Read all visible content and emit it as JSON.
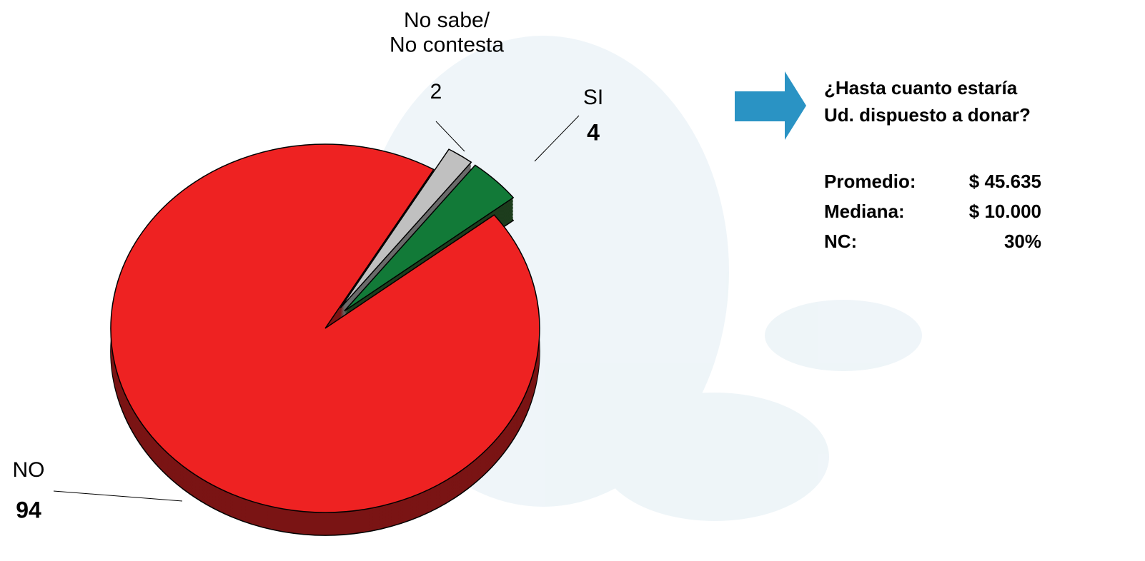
{
  "chart_data": {
    "type": "pie",
    "categories": [
      "NO",
      "No sabe/\nNo contesta",
      "SI"
    ],
    "values": [
      94,
      2,
      4
    ],
    "colors": [
      "#ee2222",
      "#c0c0c0",
      "#127a38"
    ],
    "side_colors": [
      "#7a1414",
      "#6a6a6a",
      "#1d3d1d"
    ],
    "question": [
      "¿Hasta cuanto estaría",
      "Ud. dispuesto a donar?"
    ],
    "stats": [
      {
        "label": "Promedio:",
        "value": "$ 45.635"
      },
      {
        "label": "Mediana:",
        "value": "$ 10.000"
      },
      {
        "label": "NC:",
        "value": "30%"
      }
    ]
  }
}
